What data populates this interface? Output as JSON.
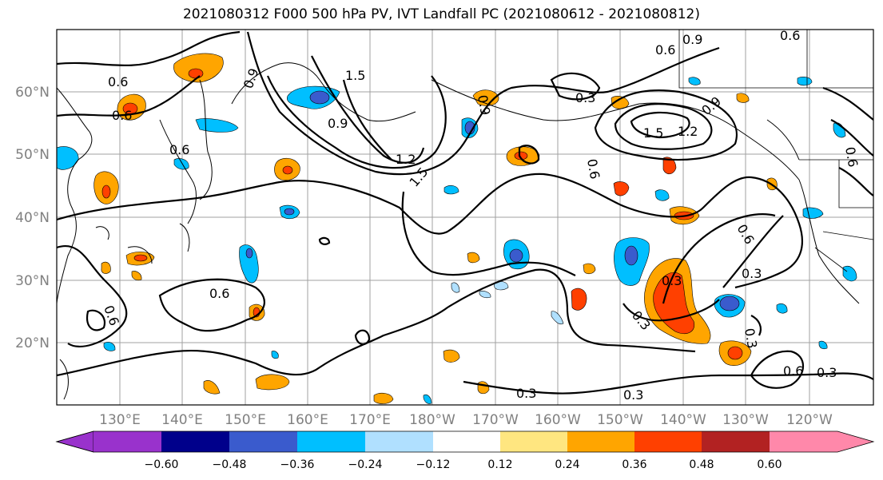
{
  "title": "2021080312 F000 500 hPa PV, IVT Landfall PC (2021080612 - 2021080812)",
  "lon_labels": [
    "130°E",
    "140°E",
    "150°E",
    "160°E",
    "170°E",
    "180°W",
    "170°W",
    "160°W",
    "150°W",
    "140°W",
    "130°W",
    "120°W"
  ],
  "lat_labels": [
    "60°N",
    "50°N",
    "40°N",
    "30°N",
    "20°N"
  ],
  "contour_labels": [
    "0.6",
    "0.9",
    "1.5",
    "0.9",
    "0.6",
    "0.9",
    "0.3",
    "0.6",
    "1.5",
    "1.2",
    "0.6",
    "0.9",
    "1.2",
    "1.5",
    "0.6",
    "0.6",
    "0.3",
    "0.3",
    "0.6",
    "0.3",
    "0.3",
    "0.3",
    "0.3",
    "0.6",
    "0.6",
    "0.6",
    "0.3",
    "0.6",
    "0.9"
  ],
  "colorbar": {
    "ticks": [
      "−0.60",
      "−0.48",
      "−0.36",
      "−0.24",
      "−0.12",
      "0.12",
      "0.24",
      "0.36",
      "0.48",
      "0.60"
    ],
    "colors": [
      "#9932cc",
      "#00008b",
      "#3a5bcd",
      "#00bfff",
      "#b0e0ff",
      "#ffffff",
      "#ffe680",
      "#ffa500",
      "#ff4000",
      "#b22222",
      "#ff88aa"
    ]
  },
  "shading_colors": {
    "neg1": "#00bfff",
    "neg2": "#3a5bcd",
    "pos1": "#ffa500",
    "pos2": "#ff4000",
    "pos0": "#ffe680"
  }
}
